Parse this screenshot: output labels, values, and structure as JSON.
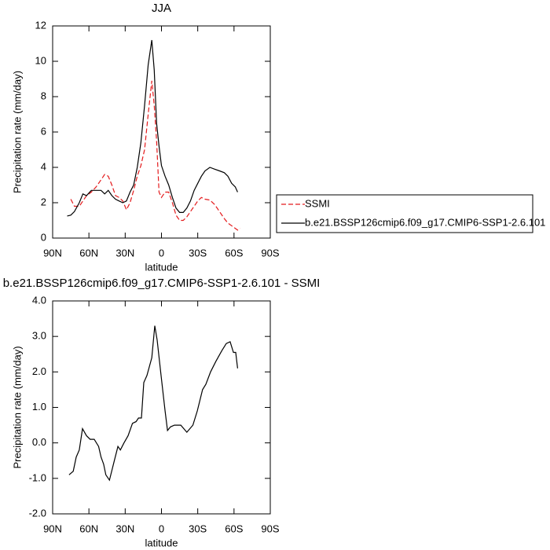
{
  "chart_data": [
    {
      "type": "line",
      "title": "JJA",
      "xlabel": "latitude",
      "ylabel": "Precipitation rate (mm/day)",
      "x": [
        78,
        75,
        72,
        68,
        65,
        62,
        58,
        54,
        50,
        47,
        44,
        41,
        38,
        35,
        32,
        29,
        26,
        23,
        20,
        17,
        14,
        11,
        8,
        6,
        4,
        2,
        0,
        -3,
        -6,
        -9,
        -12,
        -15,
        -18,
        -21,
        -24,
        -27,
        -30,
        -33,
        -36,
        -40,
        -44,
        -48,
        -52,
        -55,
        -58,
        -61,
        -63,
        -65
      ],
      "series": [
        {
          "name": "SSMI",
          "color": "#e41a1c",
          "style": "dashed",
          "values": [
            null,
            2.2,
            1.8,
            1.8,
            2.1,
            2.4,
            2.6,
            2.9,
            3.3,
            3.6,
            3.5,
            3.0,
            2.4,
            2.3,
            2.1,
            1.6,
            2.0,
            2.7,
            3.5,
            4.1,
            5.0,
            7.0,
            8.9,
            7.5,
            5.5,
            2.6,
            2.3,
            2.6,
            2.6,
            2.0,
            1.3,
            1.0,
            1.0,
            1.2,
            1.5,
            1.8,
            2.1,
            2.3,
            2.2,
            2.15,
            1.9,
            1.5,
            1.1,
            0.85,
            0.7,
            0.55,
            0.45,
            0.55
          ]
        },
        {
          "name": "b.e21.BSSP126cmip6.f09_g17.CMIP6-SSP1-2.6.101",
          "color": "#000000",
          "style": "solid",
          "values": [
            1.25,
            1.3,
            1.5,
            2.0,
            2.5,
            2.4,
            2.7,
            2.7,
            2.7,
            2.5,
            2.7,
            2.4,
            2.2,
            2.1,
            2.0,
            2.1,
            2.6,
            3.0,
            4.0,
            5.4,
            7.5,
            9.8,
            11.2,
            9.5,
            6.5,
            5.2,
            4.1,
            3.5,
            3.0,
            2.3,
            1.7,
            1.45,
            1.45,
            1.7,
            2.1,
            2.7,
            3.1,
            3.5,
            3.8,
            4.0,
            3.9,
            3.8,
            3.7,
            3.5,
            3.1,
            2.9,
            2.6,
            null
          ]
        }
      ],
      "xlim": [
        90,
        -90
      ],
      "xticks": [
        {
          "value": 90,
          "label": "90N"
        },
        {
          "value": 60,
          "label": "60N"
        },
        {
          "value": 30,
          "label": "30N"
        },
        0,
        {
          "value": -30,
          "label": "30S"
        },
        {
          "value": -60,
          "label": "60S"
        },
        {
          "value": -90,
          "label": "90S"
        }
      ],
      "ylim": [
        0,
        12
      ],
      "yticks": [
        0,
        2,
        4,
        6,
        8,
        10,
        12
      ],
      "legend": "right"
    },
    {
      "type": "line",
      "title": "b.e21.BSSP126cmip6.f09_g17.CMIP6-SSP1-2.6.101 - SSMI",
      "xlabel": "latitude",
      "ylabel": "Precipitation rate (mm/day)",
      "x": [
        76.4,
        73,
        70.5,
        68,
        65.3,
        62,
        59,
        55.6,
        52,
        50,
        47.8,
        46,
        43,
        39,
        36,
        34,
        31,
        27.6,
        24,
        21,
        19,
        16.6,
        14.6,
        12,
        8,
        5.5,
        3.6,
        0.3,
        -3,
        -5,
        -7.5,
        -10.7,
        -16,
        -21,
        -26,
        -29.6,
        -34,
        -36.7,
        -40.6,
        -45,
        -50,
        -53.6,
        -56.8,
        -59.5,
        -61.4,
        -63
      ],
      "color": "#000000",
      "values": [
        -0.9,
        -0.8,
        -0.4,
        -0.2,
        0.4,
        0.2,
        0.1,
        0.1,
        -0.1,
        -0.4,
        -0.6,
        -0.9,
        -1.05,
        -0.5,
        -0.1,
        -0.2,
        0.0,
        0.2,
        0.55,
        0.6,
        0.7,
        0.7,
        1.7,
        1.9,
        2.4,
        3.3,
        2.9,
        1.9,
        0.9,
        0.35,
        0.45,
        0.5,
        0.5,
        0.3,
        0.5,
        0.9,
        1.5,
        1.65,
        2.0,
        2.3,
        2.6,
        2.8,
        2.85,
        2.55,
        2.55,
        2.1
      ],
      "xlim": [
        90,
        -90
      ],
      "xticks": [
        {
          "value": 90,
          "label": "90N"
        },
        {
          "value": 60,
          "label": "60N"
        },
        {
          "value": 30,
          "label": "30N"
        },
        0,
        {
          "value": -30,
          "label": "30S"
        },
        {
          "value": -60,
          "label": "60S"
        },
        {
          "value": -90,
          "label": "90S"
        }
      ],
      "ylim": [
        -2,
        4
      ],
      "yticks": [
        {
          "value": -2,
          "label": "-2.0"
        },
        {
          "value": -1,
          "label": "-1.0"
        },
        {
          "value": 0,
          "label": "0.0"
        },
        {
          "value": 1,
          "label": "1.0"
        },
        {
          "value": 2,
          "label": "2.0"
        },
        {
          "value": 3,
          "label": "3.0"
        },
        {
          "value": 4,
          "label": "4.0"
        }
      ]
    }
  ]
}
